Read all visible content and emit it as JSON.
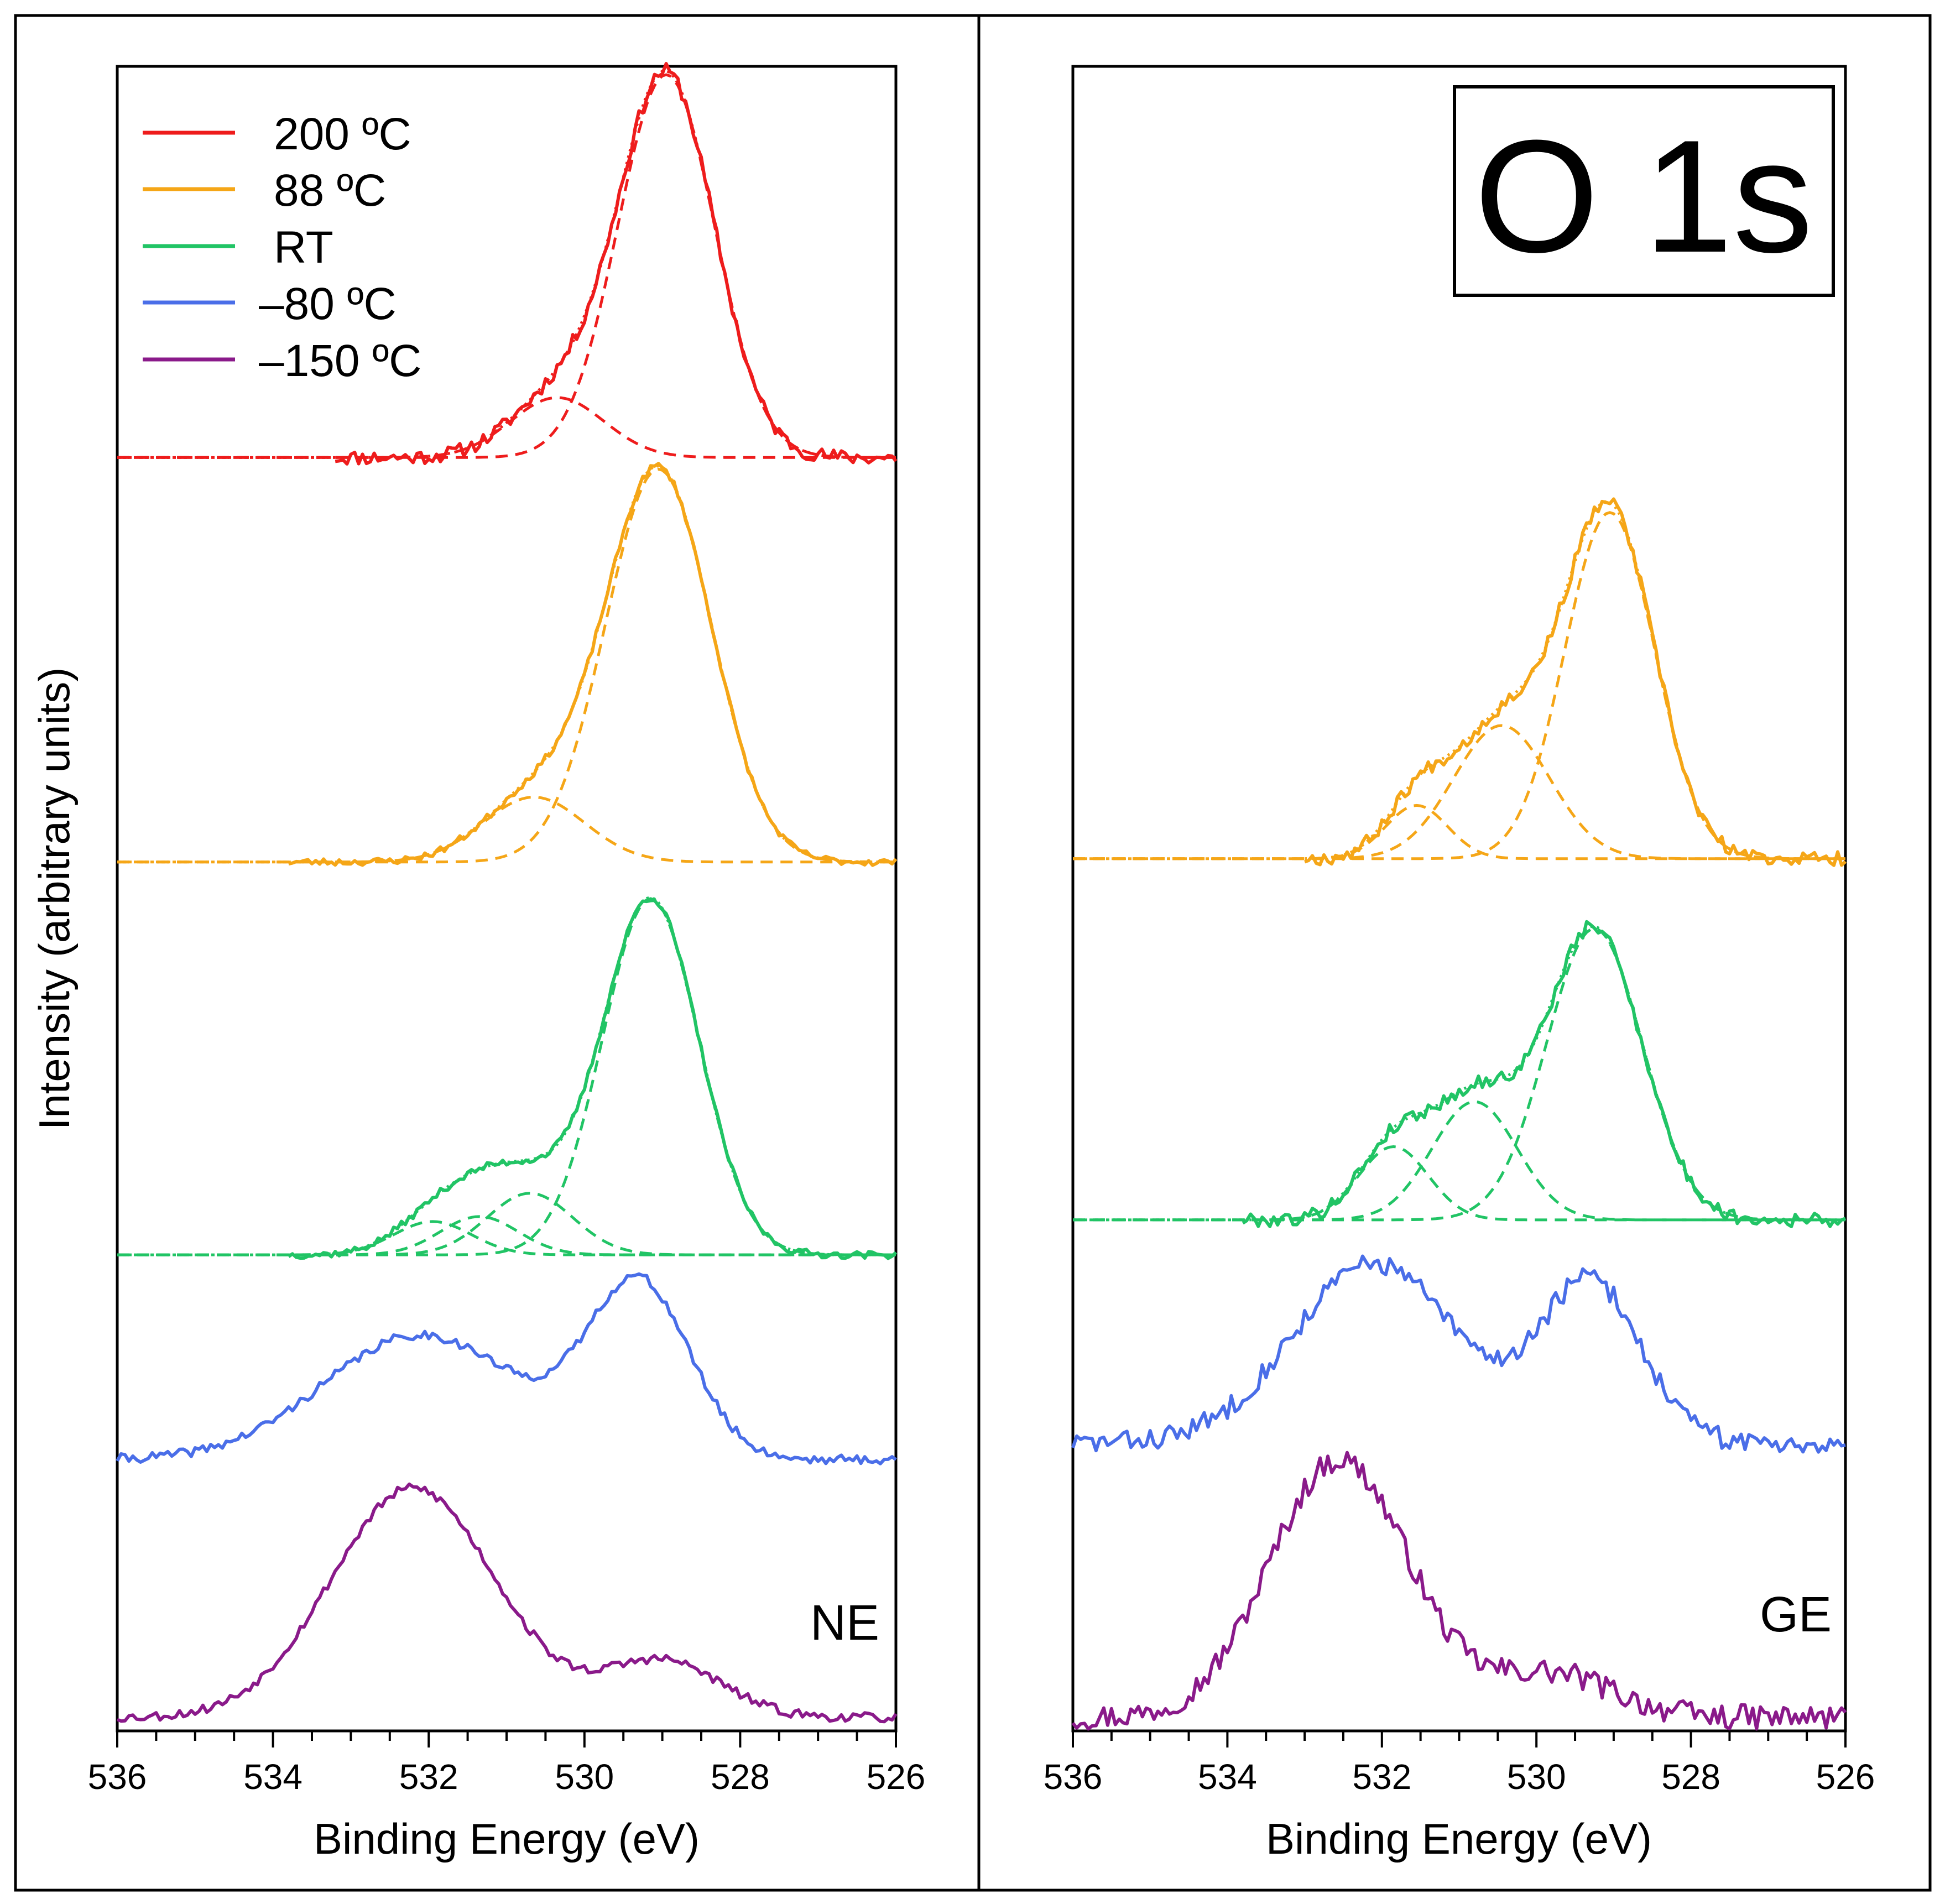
{
  "figure": {
    "title": "O 1s",
    "ylabel": "Intensity (arbitrary units)",
    "colors": {
      "200C": "#ee1c1c",
      "88C": "#f5a617",
      "RT": "#21c465",
      "m80C": "#4a6ee8",
      "m150C": "#8a1a8a"
    }
  },
  "legend": [
    {
      "label": "200 ºC",
      "color": "#ee1c1c"
    },
    {
      "label": "88 ºC",
      "color": "#f5a617"
    },
    {
      "label": "RT",
      "color": "#21c465"
    },
    {
      "label": "–80 ºC",
      "color": "#4a6ee8"
    },
    {
      "label": "–150 ºC",
      "color": "#8a1a8a"
    }
  ],
  "chart_data": [
    {
      "type": "line",
      "panel_label": "NE",
      "title": "",
      "xlabel": "Binding Energy (eV)",
      "ylabel": "Intensity (arbitrary units)",
      "xlim": [
        536,
        526
      ],
      "ylim": [
        0,
        100
      ],
      "xticks": [
        "536",
        "534",
        "532",
        "530",
        "528",
        "526"
      ],
      "yticks": "none",
      "series": [
        {
          "name": "200 ºC",
          "color": "#ee1c1c",
          "offset": 76.5,
          "range": [
            533.2,
            526
          ],
          "components": [
            {
              "center": 528.95,
              "amp": 23,
              "sigma": 0.62
            },
            {
              "center": 530.35,
              "amp": 3.6,
              "sigma": 0.6
            }
          ],
          "noise": 0.45,
          "seed": 11
        },
        {
          "name": "88 ºC",
          "color": "#f5a617",
          "offset": 52.2,
          "range": [
            533.8,
            526
          ],
          "components": [
            {
              "center": 529.05,
              "amp": 23.6,
              "sigma": 0.68
            },
            {
              "center": 530.65,
              "amp": 3.9,
              "sigma": 0.65
            }
          ],
          "noise": 0.22,
          "seed": 23
        },
        {
          "name": "RT",
          "color": "#21c465",
          "offset": 28.6,
          "range": [
            533.8,
            526
          ],
          "components": [
            {
              "center": 529.15,
              "amp": 21.4,
              "sigma": 0.62
            },
            {
              "center": 530.7,
              "amp": 3.7,
              "sigma": 0.55
            },
            {
              "center": 531.35,
              "amp": 2.3,
              "sigma": 0.5
            },
            {
              "center": 531.95,
              "amp": 2.0,
              "sigma": 0.5
            }
          ],
          "noise": 0.22,
          "seed": 37
        },
        {
          "name": "–80 ºC",
          "color": "#4a6ee8",
          "offset": 16.3,
          "range": [
            536,
            526
          ],
          "components": [
            {
              "center": 529.3,
              "amp": 10.4,
              "sigma": 0.65
            },
            {
              "center": 532.1,
              "amp": 7.5,
              "sigma": 1.25
            }
          ],
          "noise": 0.28,
          "seed": 41
        },
        {
          "name": "–150 ºC",
          "color": "#8a1a8a",
          "offset": 0.8,
          "range": [
            536,
            526
          ],
          "components": [
            {
              "center": 532.2,
              "amp": 13.8,
              "sigma": 1.05
            },
            {
              "center": 529.0,
              "amp": 3.4,
              "sigma": 0.75
            }
          ],
          "noise": 0.28,
          "seed": 53
        }
      ]
    },
    {
      "type": "line",
      "panel_label": "GE",
      "title": "O 1s",
      "xlabel": "Binding Energy (eV)",
      "ylabel": "",
      "xlim": [
        536,
        526
      ],
      "ylim": [
        0,
        100
      ],
      "xticks": [
        "536",
        "534",
        "532",
        "530",
        "528",
        "526"
      ],
      "yticks": "none",
      "series": [
        {
          "name": "88 ºC",
          "color": "#f5a617",
          "offset": 52.4,
          "range": [
            533,
            526
          ],
          "components": [
            {
              "center": 529.05,
              "amp": 20.8,
              "sigma": 0.58
            },
            {
              "center": 530.45,
              "amp": 8.0,
              "sigma": 0.62
            },
            {
              "center": 531.55,
              "amp": 3.2,
              "sigma": 0.4
            }
          ],
          "noise": 0.42,
          "seed": 67
        },
        {
          "name": "RT",
          "color": "#21c465",
          "offset": 30.7,
          "range": [
            533.8,
            526
          ],
          "components": [
            {
              "center": 529.25,
              "amp": 17.5,
              "sigma": 0.62
            },
            {
              "center": 530.8,
              "amp": 7.1,
              "sigma": 0.55
            },
            {
              "center": 531.85,
              "amp": 4.4,
              "sigma": 0.45
            }
          ],
          "noise": 0.42,
          "seed": 79
        },
        {
          "name": "–80 ºC",
          "color": "#4a6ee8",
          "offset": 17.3,
          "range": [
            536,
            526
          ],
          "components": [
            {
              "center": 529.3,
              "amp": 9.6,
              "sigma": 0.65
            },
            {
              "center": 532.1,
              "amp": 10.8,
              "sigma": 1.05
            }
          ],
          "noise": 0.65,
          "seed": 83
        },
        {
          "name": "–150 ºC",
          "color": "#8a1a8a",
          "offset": 0.8,
          "range": [
            536,
            526
          ],
          "components": [
            {
              "center": 532.55,
              "amp": 15.5,
              "sigma": 0.9
            },
            {
              "center": 529.8,
              "amp": 2.6,
              "sigma": 0.8
            }
          ],
          "noise": 0.75,
          "seed": 97
        }
      ]
    }
  ]
}
